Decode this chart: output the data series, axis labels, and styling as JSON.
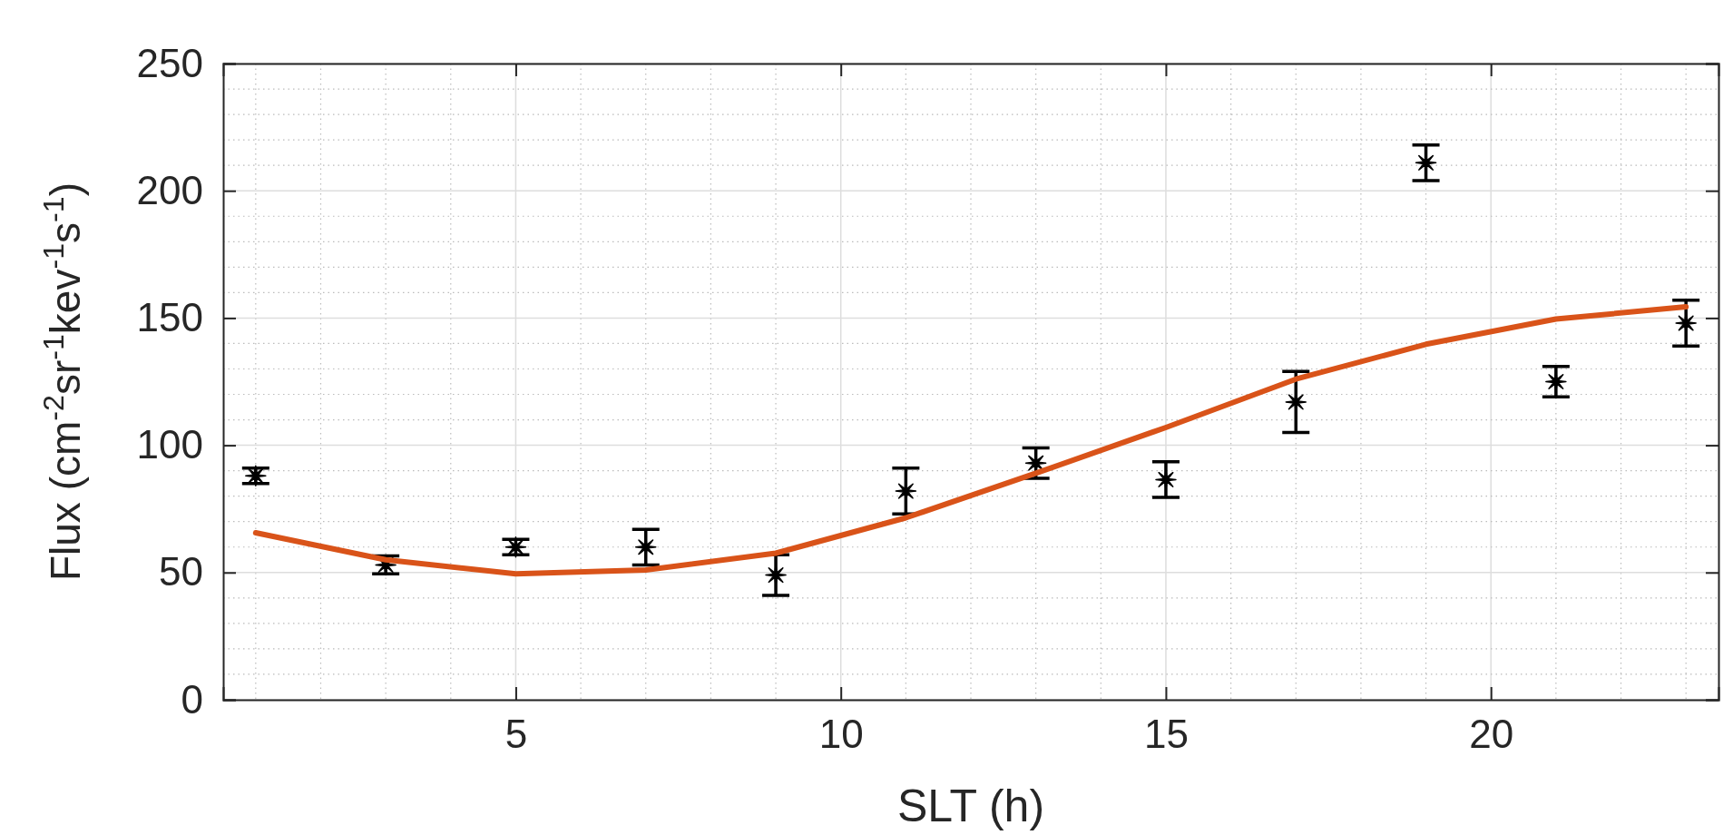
{
  "chart_data": {
    "type": "scatter",
    "xlabel": "SLT (h)",
    "ylabel": "Flux (cm$^{-2}$sr$^{-1}$kev$^{-1}$s$^{-1}$)",
    "xlim": [
      0.5,
      23.5
    ],
    "xticks": [
      5,
      10,
      15,
      20
    ],
    "ylim": [
      0,
      250
    ],
    "yticks": [
      0,
      50,
      100,
      150,
      200,
      250
    ],
    "grid": true,
    "series": [
      {
        "type": "scatter",
        "color": "#000000",
        "marker": "star",
        "x": [
          1,
          3,
          5,
          7,
          9,
          11,
          13,
          15,
          17,
          19,
          21,
          23
        ],
        "values": [
          88,
          53,
          60,
          60,
          49,
          82,
          93,
          86.5,
          117,
          211,
          125,
          148
        ],
        "errors": [
          3,
          3.5,
          3,
          7,
          8,
          9,
          6,
          7,
          12,
          7,
          6,
          9
        ]
      },
      {
        "type": "line",
        "color": "#d95319",
        "marker": "none",
        "line_style": "solid",
        "x": [
          1,
          3,
          5,
          7,
          9,
          11,
          13,
          15,
          17,
          19,
          21,
          23
        ],
        "values": [
          65.6,
          55,
          49.5,
          51,
          57.6,
          71.5,
          89,
          107,
          126,
          139.7,
          149.6,
          154.4
        ]
      }
    ]
  }
}
